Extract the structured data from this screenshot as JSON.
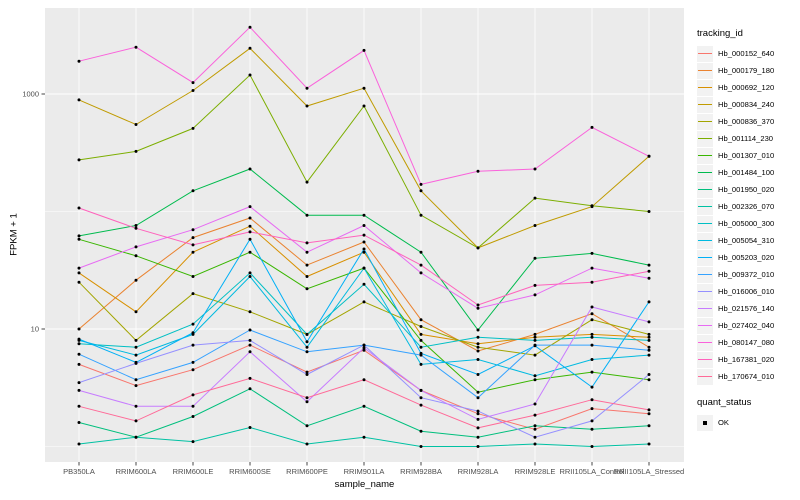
{
  "figure": {
    "x_axis_title": "sample_name",
    "y_axis_title": "FPKM + 1",
    "y_tick_labels": [
      "1000",
      "10"
    ],
    "y_tick_values": [
      1000,
      10
    ]
  },
  "legend": {
    "tracking_title": "tracking_id",
    "quant_title": "quant_status",
    "quant_ok": "OK"
  },
  "colors": {
    "panel_bg": "#EBEBEB",
    "grid": "#FFFFFF",
    "tick": "#333333",
    "axis_text": "#4D4D4D",
    "point": "#000000",
    "legend_key_bg": "#F2F2F2"
  },
  "chart_data": {
    "type": "line",
    "title": "",
    "xlabel": "sample_name",
    "ylabel": "FPKM + 1",
    "yscale": "log10",
    "ylim": [
      1,
      4000
    ],
    "grid": true,
    "legend_position": "right",
    "point_shape": "black dot on every vertex",
    "quant_status": "OK",
    "categories": [
      "PB350LA",
      "RRIM600LA",
      "RRIM600LE",
      "RRIM600SE",
      "RRIM600PE",
      "RRIM901LA",
      "RRIM928BA",
      "RRIM928LA",
      "RRIM928LE",
      "RRII105LA_Control",
      "RRII105LA_Stressed"
    ],
    "series": [
      {
        "name": "Hb_000152_640",
        "color": "#F8766D",
        "values": [
          5.0,
          3.3,
          4.5,
          7.3,
          4.3,
          6.6,
          3.0,
          1.9,
          1.4,
          2.1,
          1.9
        ]
      },
      {
        "name": "Hb_000179_180",
        "color": "#EA8331",
        "values": [
          10,
          26,
          60,
          88,
          35,
          55,
          12,
          6.5,
          9,
          13.5,
          7
        ]
      },
      {
        "name": "Hb_000692_120",
        "color": "#D89000",
        "values": [
          30,
          14,
          45,
          75,
          28,
          45,
          9,
          7.5,
          8.5,
          9,
          8.5
        ]
      },
      {
        "name": "Hb_000834_240",
        "color": "#C09B00",
        "values": [
          890,
          550,
          1070,
          2450,
          790,
          1120,
          150,
          49,
          76,
          110,
          295
        ]
      },
      {
        "name": "Hb_000836_370",
        "color": "#A3A500",
        "values": [
          25,
          8,
          20,
          14,
          9,
          17,
          10.5,
          7,
          6,
          12,
          9
        ]
      },
      {
        "name": "Hb_001114_230",
        "color": "#7CAE00",
        "values": [
          275,
          325,
          510,
          1450,
          178,
          790,
          93,
          49,
          130,
          112,
          100
        ]
      },
      {
        "name": "Hb_001307_010",
        "color": "#39B600",
        "values": [
          58,
          42,
          28,
          45,
          22,
          33,
          8,
          2.9,
          3.7,
          4.3,
          3.7
        ]
      },
      {
        "name": "Hb_001484_100",
        "color": "#00BB4E",
        "values": [
          62,
          76,
          150,
          230,
          93,
          93,
          45,
          9.8,
          40,
          44,
          35
        ]
      },
      {
        "name": "Hb_001950_020",
        "color": "#00BF7D",
        "values": [
          1.6,
          1.2,
          1.8,
          3.1,
          1.5,
          2.2,
          1.35,
          1.2,
          1.5,
          1.4,
          1.5
        ]
      },
      {
        "name": "Hb_002326_070",
        "color": "#00C1A3",
        "values": [
          1.05,
          1.2,
          1.1,
          1.45,
          1.05,
          1.2,
          1.0,
          1.0,
          1.05,
          1.0,
          1.05
        ]
      },
      {
        "name": "Hb_005000_300",
        "color": "#00BFC4",
        "values": [
          7.5,
          7.0,
          11,
          30,
          9,
          24,
          7,
          8.5,
          8,
          8.5,
          8
        ]
      },
      {
        "name": "Hb_005054_310",
        "color": "#00BAE0",
        "values": [
          8,
          6,
          9,
          28,
          7,
          33,
          5,
          5.5,
          4,
          5.5,
          6
        ]
      },
      {
        "name": "Hb_005203_020",
        "color": "#00B0F6",
        "values": [
          8.2,
          5.2,
          9.3,
          58,
          7.8,
          48,
          6.2,
          4.1,
          7.2,
          3.2,
          17
        ]
      },
      {
        "name": "Hb_009372_010",
        "color": "#35A2FF",
        "values": [
          6.1,
          3.7,
          5.2,
          9.8,
          6.4,
          7.3,
          6.0,
          2.6,
          7.3,
          7.3,
          6.6
        ]
      },
      {
        "name": "Hb_016006_010",
        "color": "#9590FF",
        "values": [
          3.5,
          5.1,
          7.3,
          8.0,
          4.1,
          7.3,
          2.6,
          2.0,
          1.2,
          1.65,
          4.1
        ]
      },
      {
        "name": "Hb_021576_140",
        "color": "#C77CFF",
        "values": [
          3.0,
          2.2,
          2.2,
          6.4,
          2.4,
          6.9,
          3.0,
          1.7,
          2.3,
          15.4,
          11.5
        ]
      },
      {
        "name": "Hb_027402_040",
        "color": "#E76BF3",
        "values": [
          33,
          50,
          70,
          110,
          45,
          76,
          30,
          15,
          19.5,
          33,
          27
        ]
      },
      {
        "name": "Hb_080147_080",
        "color": "#FA62DB",
        "values": [
          1900,
          2500,
          1250,
          3700,
          1120,
          2350,
          170,
          220,
          230,
          520,
          295
        ]
      },
      {
        "name": "Hb_167381_020",
        "color": "#FF62BC",
        "values": [
          107,
          72,
          52,
          67,
          54,
          63,
          35,
          16,
          23.5,
          25,
          31
        ]
      },
      {
        "name": "Hb_170674_010",
        "color": "#FF6A98",
        "values": [
          2.2,
          1.65,
          2.75,
          3.8,
          2.6,
          3.7,
          2.25,
          1.44,
          1.85,
          2.5,
          2.05
        ]
      }
    ]
  }
}
